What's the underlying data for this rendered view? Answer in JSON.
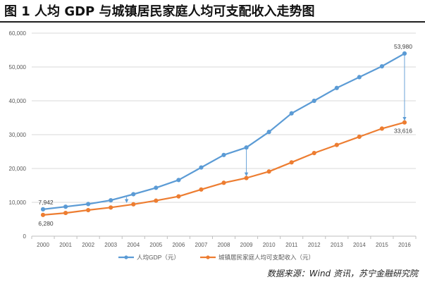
{
  "title": "图 1 人均 GDP 与城镇居民家庭人均可支配收入走势图",
  "source": "数据来源：Wind 资讯，苏宁金融研究院",
  "colors": {
    "gdp": "#5B9BD5",
    "income": "#ED7D31",
    "grid": "#D9D9D9",
    "axis_text": "#595959",
    "arrow": "#5B9BD5"
  },
  "chart_data": {
    "type": "line",
    "x": [
      "2000",
      "2001",
      "2002",
      "2003",
      "2004",
      "2005",
      "2006",
      "2007",
      "2008",
      "2009",
      "2010",
      "2011",
      "2012",
      "2013",
      "2014",
      "2015",
      "2016"
    ],
    "ylim": [
      0,
      60000
    ],
    "yticks": [
      "0",
      "10,000",
      "20,000",
      "30,000",
      "40,000",
      "50,000",
      "60,000"
    ],
    "grid": true,
    "legend": "bottom",
    "series": [
      {
        "name": "人均GDP（元）",
        "color": "#5B9BD5",
        "values": [
          7942,
          8700,
          9500,
          10600,
          12400,
          14300,
          16600,
          20300,
          24000,
          26200,
          30800,
          36300,
          40000,
          43800,
          47000,
          50200,
          53980
        ]
      },
      {
        "name": "城镇居民家庭人均可支配收入（元）",
        "color": "#ED7D31",
        "values": [
          6280,
          6860,
          7700,
          8470,
          9420,
          10490,
          11760,
          13790,
          15780,
          17180,
          19110,
          21810,
          24560,
          26960,
          29380,
          31790,
          33616
        ]
      }
    ],
    "data_labels": [
      {
        "series": 0,
        "index": 0,
        "text": "7,942",
        "pos": "above"
      },
      {
        "series": 1,
        "index": 0,
        "text": "6,280",
        "pos": "below"
      },
      {
        "series": 0,
        "index": 16,
        "text": "53,980",
        "pos": "above"
      },
      {
        "series": 1,
        "index": 16,
        "text": "33,616",
        "pos": "below"
      }
    ],
    "arrows": [
      {
        "x_index": 3.7,
        "from": 12200,
        "to": 9300
      },
      {
        "x_index": 9,
        "from": 26200,
        "to": 17180
      },
      {
        "x_index": 16,
        "from": 53980,
        "to": 33616
      }
    ]
  }
}
